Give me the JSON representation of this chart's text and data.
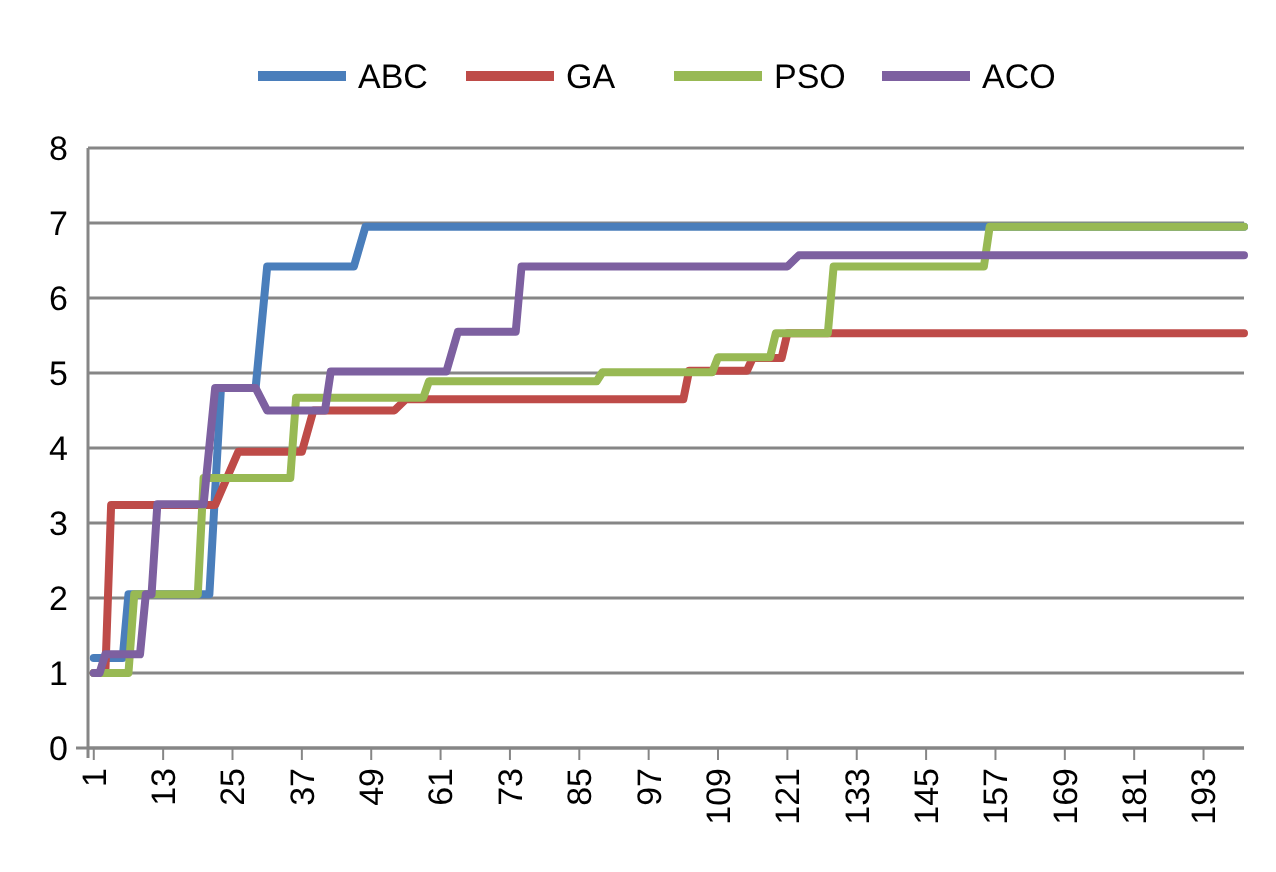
{
  "chart_data": {
    "type": "line",
    "xlim": [
      0,
      200
    ],
    "xticks": [
      1,
      13,
      25,
      37,
      49,
      61,
      73,
      85,
      97,
      109,
      121,
      133,
      145,
      157,
      169,
      181,
      193
    ],
    "ylim": [
      0,
      8
    ],
    "yticks": [
      0,
      1,
      2,
      3,
      4,
      5,
      6,
      7,
      8
    ],
    "grid": "y",
    "legend": "top",
    "marker": "none",
    "line_style": "solid",
    "series": [
      {
        "name": "ABC",
        "color": "#4a7ebb",
        "x": [
          1,
          6,
          7,
          21,
          23,
          29,
          31,
          46,
          48,
          200
        ],
        "values": [
          1.2,
          1.2,
          2.05,
          2.05,
          4.8,
          4.8,
          6.42,
          6.42,
          6.95,
          6.95
        ]
      },
      {
        "name": "GA",
        "color": "#be4b48",
        "x": [
          1,
          3,
          4,
          22,
          26,
          37,
          39,
          53,
          55,
          103,
          104,
          114,
          115,
          120,
          121,
          200
        ],
        "values": [
          1.0,
          1.0,
          3.24,
          3.24,
          3.95,
          3.95,
          4.5,
          4.5,
          4.65,
          4.65,
          5.03,
          5.03,
          5.2,
          5.2,
          5.53,
          5.53
        ]
      },
      {
        "name": "PSO",
        "color": "#98b954",
        "x": [
          1,
          7,
          8,
          19,
          20,
          35,
          36,
          58,
          59,
          88,
          89,
          108,
          109,
          118,
          119,
          128,
          129,
          155,
          156,
          200
        ],
        "values": [
          1.0,
          1.0,
          2.05,
          2.05,
          3.6,
          3.6,
          4.67,
          4.67,
          4.89,
          4.89,
          5.01,
          5.01,
          5.21,
          5.21,
          5.53,
          5.53,
          6.42,
          6.42,
          6.95,
          6.95
        ]
      },
      {
        "name": "ACO",
        "color": "#7d60a0",
        "x": [
          1,
          2,
          3,
          9,
          10,
          11,
          12,
          20,
          22,
          29,
          31,
          41,
          42,
          62,
          64,
          74,
          75,
          121,
          123,
          200
        ],
        "values": [
          1.0,
          1.0,
          1.25,
          1.25,
          2.05,
          2.05,
          3.25,
          3.25,
          4.8,
          4.8,
          4.5,
          4.5,
          5.02,
          5.02,
          5.55,
          5.55,
          6.42,
          6.42,
          6.57,
          6.57
        ]
      }
    ]
  }
}
